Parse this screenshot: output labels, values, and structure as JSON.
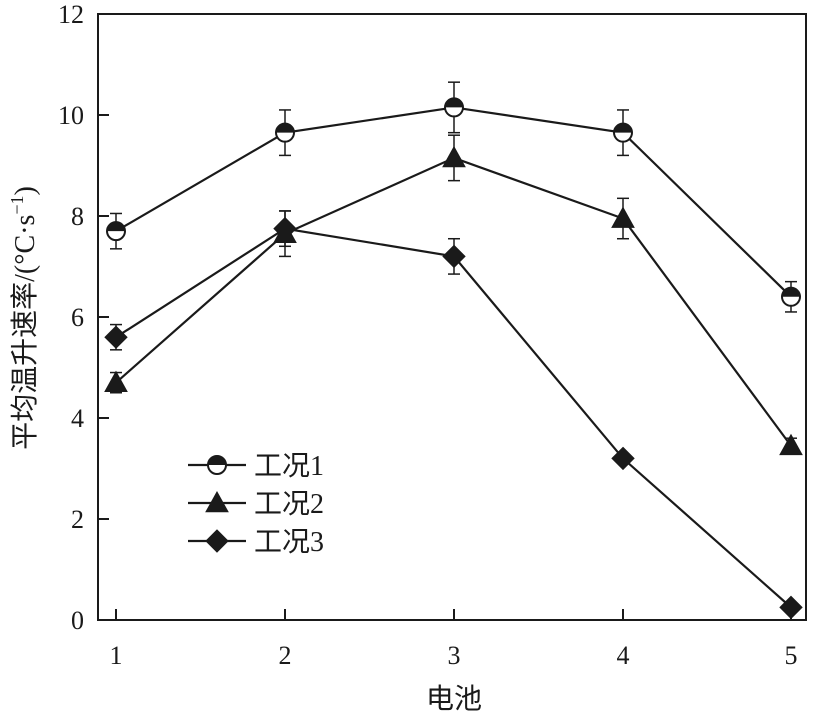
{
  "chart_data": {
    "type": "line",
    "title": "",
    "xlabel": "电池",
    "ylabel": "平均温升速率/(°C·s",
    "ylabel_sup": "−1",
    "ylabel_close": ")",
    "categories": [
      "1",
      "2",
      "3",
      "4",
      "5"
    ],
    "ylim": [
      0,
      12
    ],
    "yticks": [
      "0",
      "2",
      "4",
      "6",
      "8",
      "10",
      "12"
    ],
    "grid": false,
    "legend_position": "lower-left",
    "series": [
      {
        "name": "工况1",
        "marker": "half-filled-circle",
        "values": [
          7.7,
          9.65,
          10.15,
          9.65,
          6.4
        ],
        "errors": [
          0.35,
          0.45,
          0.5,
          0.45,
          0.3
        ]
      },
      {
        "name": "工况2",
        "marker": "triangle",
        "values": [
          4.7,
          7.65,
          9.15,
          7.95,
          3.45
        ],
        "errors": [
          0.2,
          0.45,
          0.45,
          0.4,
          0.15
        ]
      },
      {
        "name": "工况3",
        "marker": "diamond",
        "values": [
          5.6,
          7.75,
          7.2,
          3.2,
          0.25
        ],
        "errors": [
          0.25,
          0.35,
          0.35,
          0.0,
          0.0
        ]
      }
    ],
    "colors": {
      "line": "#1a1a1a",
      "marker_fill": "#1a1a1a",
      "marker_open": "#ffffff"
    }
  }
}
